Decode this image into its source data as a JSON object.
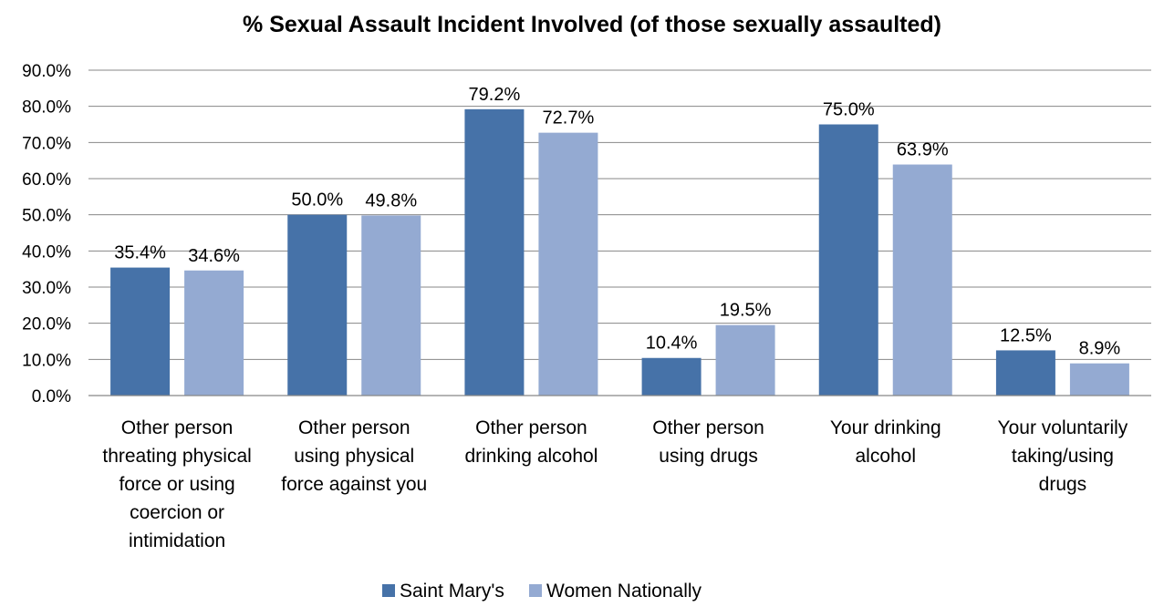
{
  "chart_data": {
    "type": "bar",
    "title": "% Sexual Assault Incident Involved (of those sexually assaulted)",
    "xlabel": "",
    "ylabel": "",
    "ylim": [
      0,
      90
    ],
    "y_ticks": [
      "0.0%",
      "10.0%",
      "20.0%",
      "30.0%",
      "40.0%",
      "50.0%",
      "60.0%",
      "70.0%",
      "80.0%",
      "90.0%"
    ],
    "grid": true,
    "legend_position": "bottom",
    "categories": [
      [
        "Other person",
        "threating physical",
        "force or using",
        "coercion or",
        "intimidation"
      ],
      [
        "Other person",
        "using physical",
        "force against you"
      ],
      [
        "Other person",
        "drinking alcohol"
      ],
      [
        "Other person",
        "using drugs"
      ],
      [
        "Your drinking",
        "alcohol"
      ],
      [
        "Your voluntarily",
        "taking/using",
        "drugs"
      ]
    ],
    "series": [
      {
        "name": "Saint Mary's",
        "color": "#4672A8",
        "values": [
          35.4,
          50.0,
          79.2,
          10.4,
          75.0,
          12.5
        ],
        "labels": [
          "35.4%",
          "50.0%",
          "79.2%",
          "10.4%",
          "75.0%",
          "12.5%"
        ]
      },
      {
        "name": "Women Nationally",
        "color": "#94AAD2",
        "values": [
          34.6,
          49.8,
          72.7,
          19.5,
          63.9,
          8.9
        ],
        "labels": [
          "34.6%",
          "49.8%",
          "72.7%",
          "19.5%",
          "63.9%",
          "8.9%"
        ]
      }
    ]
  }
}
